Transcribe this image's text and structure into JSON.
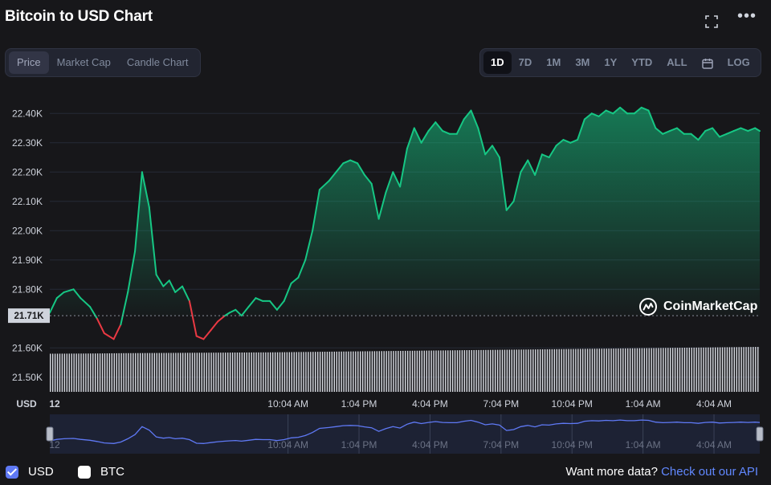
{
  "header": {
    "title": "Bitcoin to USD Chart",
    "expand_icon": "fullscreen-icon",
    "more_icon": "more-icon"
  },
  "chart_tabs": [
    {
      "label": "Price",
      "active": true
    },
    {
      "label": "Market Cap",
      "active": false
    },
    {
      "label": "Candle Chart",
      "active": false
    }
  ],
  "range_tabs": [
    {
      "label": "1D",
      "active": true
    },
    {
      "label": "7D",
      "active": false
    },
    {
      "label": "1M",
      "active": false
    },
    {
      "label": "3M",
      "active": false
    },
    {
      "label": "1Y",
      "active": false
    },
    {
      "label": "YTD",
      "active": false
    },
    {
      "label": "ALL",
      "active": false
    }
  ],
  "calendar_icon": "calendar-icon",
  "log_label": "LOG",
  "watermark": "CoinMarketCap",
  "legend": {
    "usd": "USD",
    "btc": "BTC"
  },
  "footer": {
    "prefix": "Want more data?",
    "link": "Check out our API"
  },
  "colors": {
    "up": "#16c784",
    "down": "#ea3943",
    "nav": "#5f79f5",
    "background": "#17171a"
  },
  "chart_data": {
    "type": "line",
    "title": "Bitcoin to USD Chart",
    "currency_label": "USD",
    "ylim": [
      21450,
      22450
    ],
    "yticks": [
      {
        "value": 21500,
        "label": "21.50K"
      },
      {
        "value": 21600,
        "label": "21.60K"
      },
      {
        "value": 21800,
        "label": "21.80K"
      },
      {
        "value": 21900,
        "label": "21.90K"
      },
      {
        "value": 22000,
        "label": "22.00K"
      },
      {
        "value": 22100,
        "label": "22.10K"
      },
      {
        "value": 22200,
        "label": "22.20K"
      },
      {
        "value": 22300,
        "label": "22.30K"
      },
      {
        "value": 22400,
        "label": "22.40K"
      }
    ],
    "reference_value": 21710,
    "reference_label": "21.71K",
    "xticks": [
      "12",
      "10:04 AM",
      "1:04 PM",
      "4:04 PM",
      "7:04 PM",
      "10:04 PM",
      "1:04 AM",
      "4:04 AM"
    ],
    "xtick_hours": [
      0,
      10.0667,
      13.0667,
      16.0667,
      19.0667,
      22.0667,
      25.0667,
      28.0667
    ],
    "x_hours_range": [
      0,
      30
    ],
    "grid": true,
    "series": [
      {
        "x_hours": [
          0,
          0.3,
          0.6,
          1.0,
          1.3,
          1.7,
          2.0,
          2.3,
          2.7,
          3.0,
          3.3,
          3.6,
          3.9,
          4.2,
          4.5,
          4.8,
          5.05,
          5.3,
          5.6,
          5.9,
          6.2,
          6.5,
          6.8,
          7.1,
          7.4,
          7.6,
          7.85,
          8.1,
          8.4,
          8.7,
          9.0,
          9.3,
          9.6,
          9.9,
          10.2,
          10.5,
          10.8,
          11.1,
          11.4,
          11.8,
          12.1,
          12.4,
          12.7,
          13.0,
          13.3,
          13.6,
          13.9,
          14.2,
          14.5,
          14.8,
          15.1,
          15.4,
          15.7,
          16.0,
          16.3,
          16.6,
          16.9,
          17.2,
          17.5,
          17.8,
          18.1,
          18.4,
          18.7,
          19.0,
          19.3,
          19.6,
          19.9,
          20.2,
          20.5,
          20.8,
          21.1,
          21.4,
          21.7,
          22.0,
          22.3,
          22.6,
          22.9,
          23.2,
          23.5,
          23.8,
          24.1,
          24.4,
          24.7,
          25.0,
          25.3,
          25.6,
          25.9,
          26.2,
          26.5,
          26.8,
          27.1,
          27.4,
          27.7,
          28.0,
          28.3,
          28.6,
          28.9,
          29.2,
          29.5,
          29.8,
          30.0
        ],
        "values": [
          21720,
          21770,
          21790,
          21800,
          21770,
          21740,
          21700,
          21650,
          21630,
          21680,
          21790,
          21930,
          22200,
          22080,
          21850,
          21810,
          21830,
          21790,
          21810,
          21760,
          21640,
          21630,
          21660,
          21690,
          21710,
          21720,
          21730,
          21710,
          21740,
          21770,
          21760,
          21760,
          21730,
          21760,
          21820,
          21840,
          21900,
          22000,
          22140,
          22170,
          22200,
          22230,
          22240,
          22230,
          22190,
          22160,
          22040,
          22130,
          22200,
          22150,
          22280,
          22350,
          22300,
          22340,
          22370,
          22340,
          22330,
          22330,
          22380,
          22410,
          22350,
          22260,
          22290,
          22250,
          22070,
          22100,
          22200,
          22240,
          22190,
          22260,
          22250,
          22290,
          22310,
          22300,
          22310,
          22380,
          22400,
          22390,
          22410,
          22400,
          22420,
          22400,
          22400,
          22420,
          22410,
          22350,
          22330,
          22340,
          22350,
          22330,
          22330,
          22310,
          22340,
          22350,
          22320,
          22330,
          22340,
          22350,
          22340,
          22350,
          22340
        ]
      }
    ],
    "volume_values": [
      0.5,
      0.51,
      0.52,
      0.54,
      0.55,
      0.56,
      0.57,
      0.58,
      0.59,
      0.6,
      0.62,
      0.64,
      0.66,
      0.68,
      0.7,
      0.72,
      0.74,
      0.76,
      0.78,
      0.8,
      0.82,
      0.84,
      0.86,
      0.88,
      0.9,
      0.92,
      0.94,
      0.96,
      0.98,
      1.0
    ]
  }
}
